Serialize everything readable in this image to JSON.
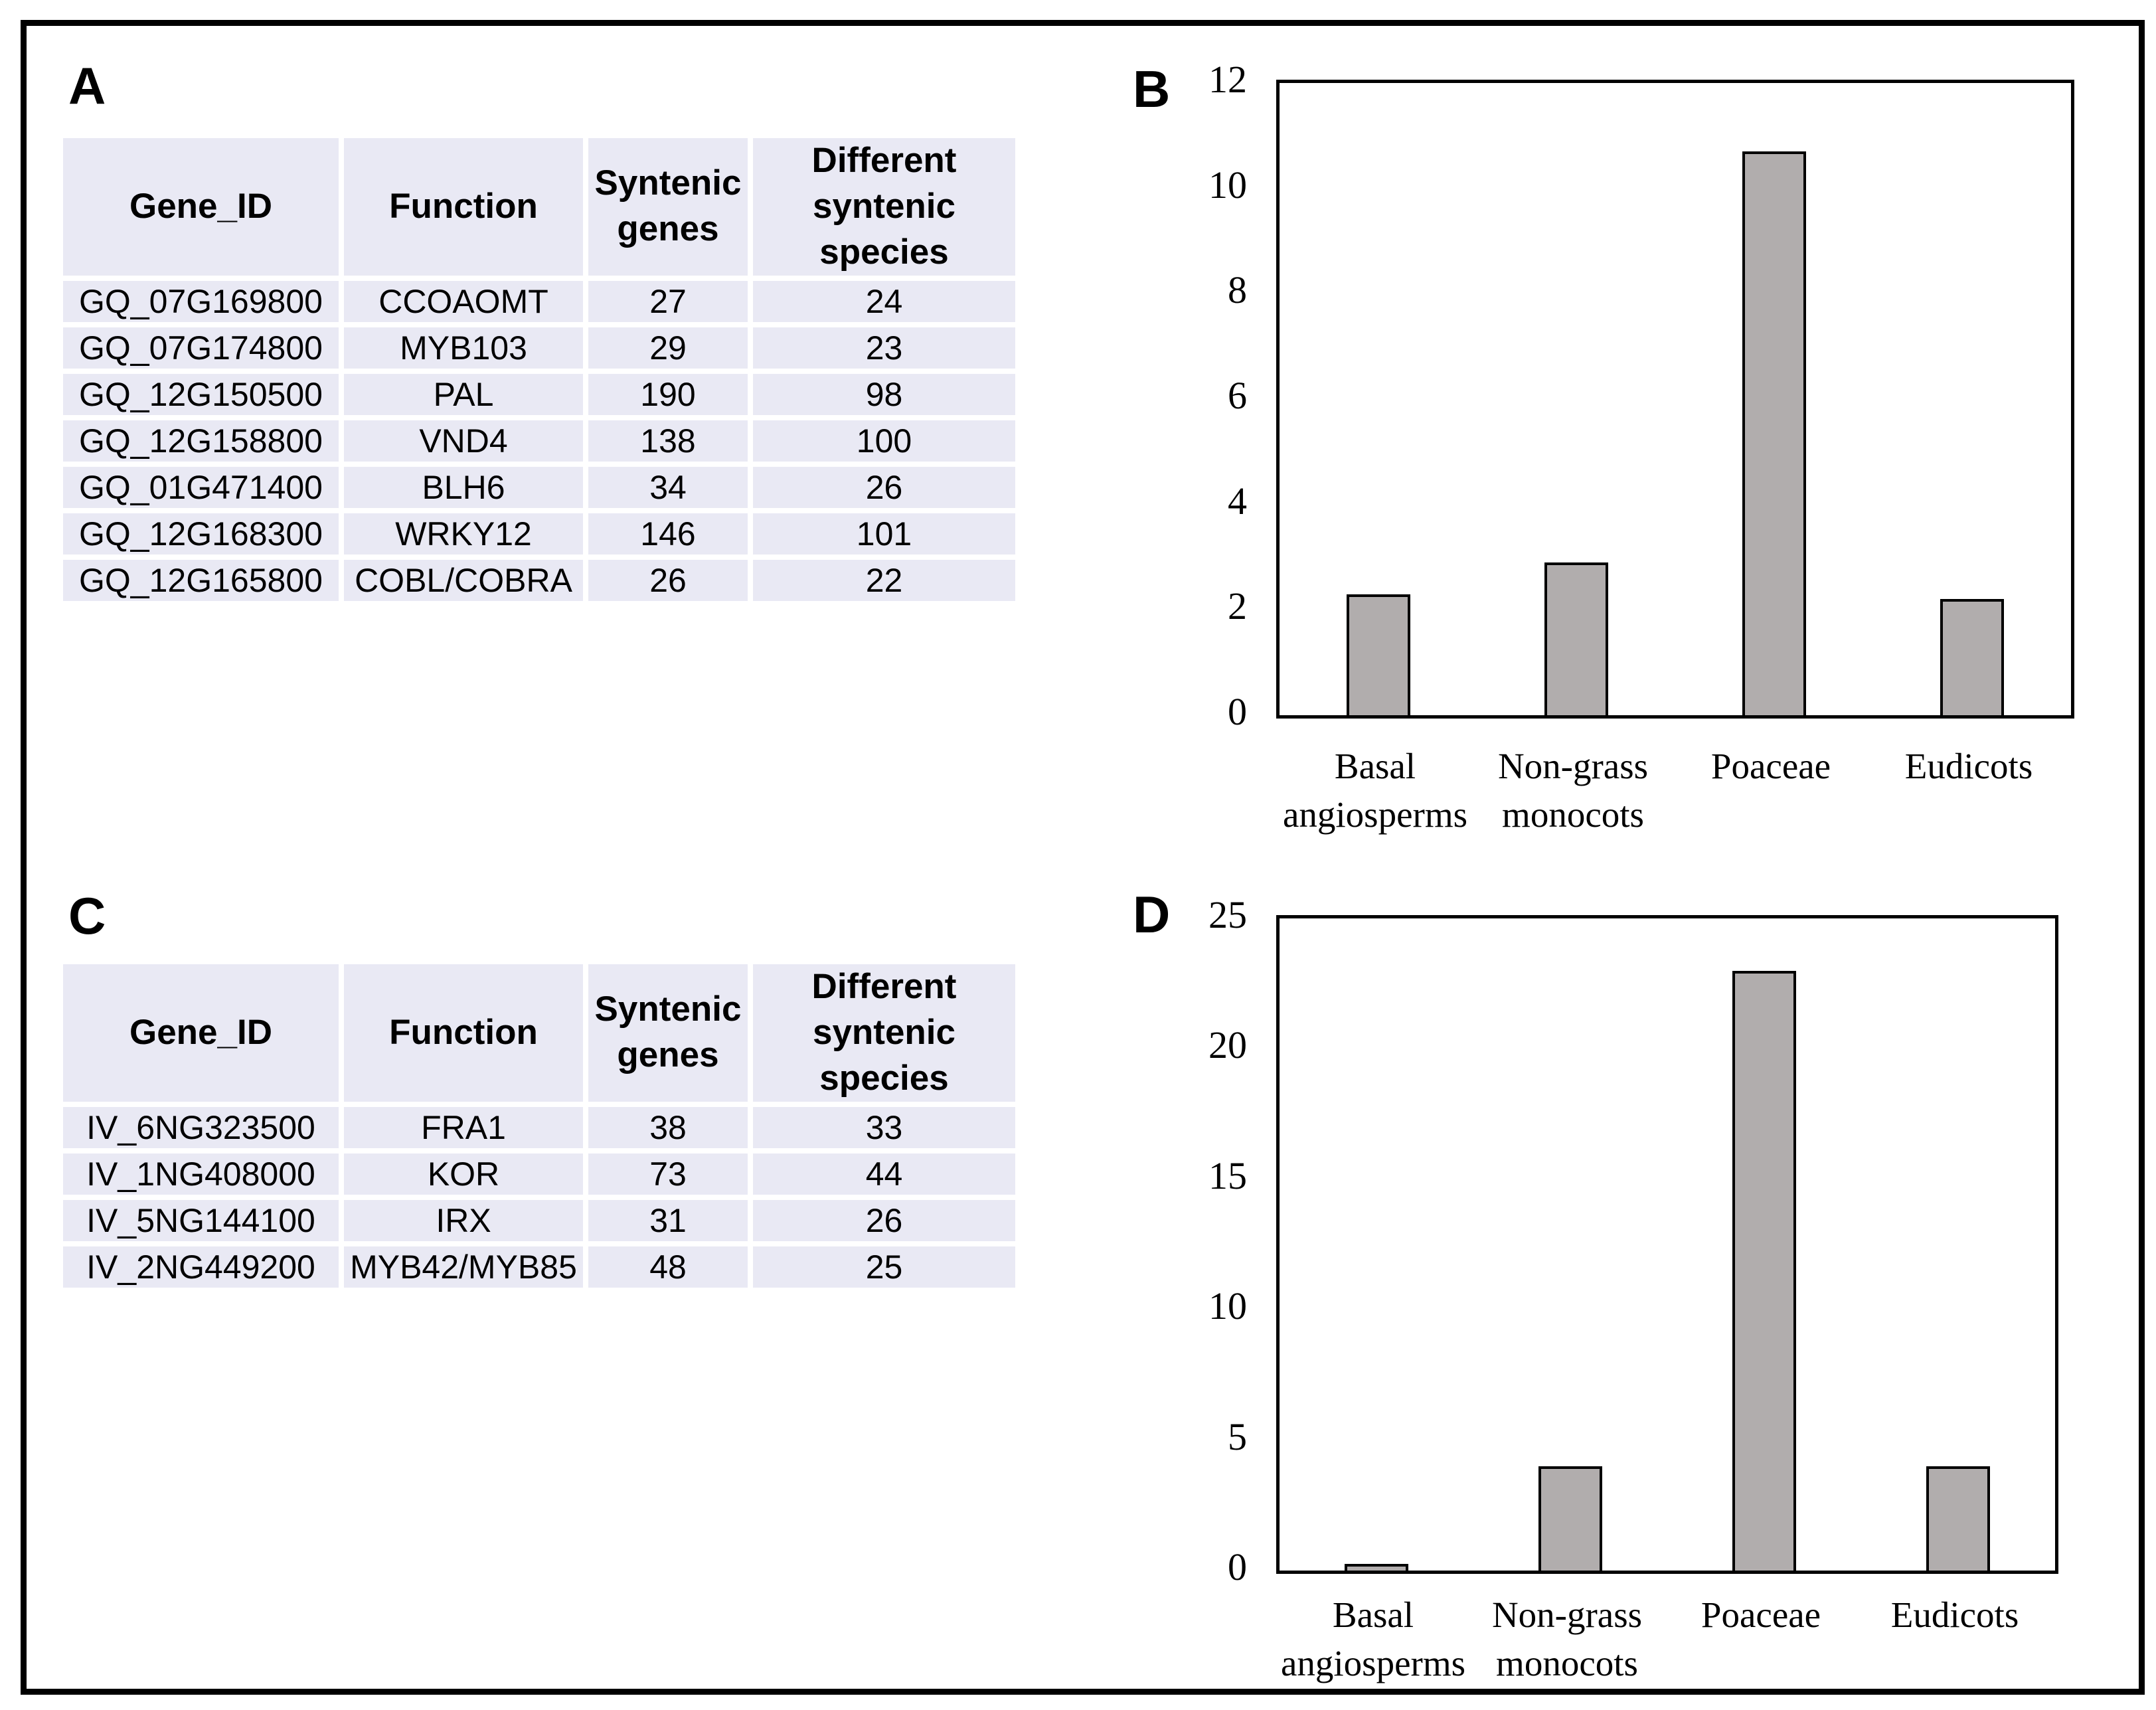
{
  "colors": {
    "background": "#ffffff",
    "frame": "#000000",
    "table_cell_bg": "#e9e9f4",
    "bar_fill": "#b1adad",
    "bar_border": "#000000",
    "text": "#000000"
  },
  "panels": {
    "a": {
      "label": "A"
    },
    "b": {
      "label": "B"
    },
    "c": {
      "label": "C"
    },
    "d": {
      "label": "D"
    }
  },
  "chart_data": [
    {
      "panel": "A",
      "type": "table",
      "columns": [
        "Gene_ID",
        "Function",
        "Syntenic\ngenes",
        "Different\nsyntenic species"
      ],
      "rows": [
        [
          "GQ_07G169800",
          "CCOAOMT",
          "27",
          "24"
        ],
        [
          "GQ_07G174800",
          "MYB103",
          "29",
          "23"
        ],
        [
          "GQ_12G150500",
          "PAL",
          "190",
          "98"
        ],
        [
          "GQ_12G158800",
          "VND4",
          "138",
          "100"
        ],
        [
          "GQ_01G471400",
          "BLH6",
          "34",
          "26"
        ],
        [
          "GQ_12G168300",
          "WRKY12",
          "146",
          "101"
        ],
        [
          "GQ_12G165800",
          "COBL/COBRA",
          "26",
          "22"
        ]
      ]
    },
    {
      "panel": "B",
      "type": "bar",
      "title": "",
      "xlabel": "",
      "ylabel": "",
      "categories": [
        "Basal\nangiosperms",
        "Non-grass\nmonocots",
        "Poaceae",
        "Eudicots"
      ],
      "values": [
        2.3,
        2.9,
        10.7,
        2.2
      ],
      "ylim": [
        0,
        12
      ],
      "yticks": [
        0,
        2,
        4,
        6,
        8,
        10,
        12
      ],
      "grid": false,
      "legend": false,
      "bar_fill": "#b1adad",
      "bar_border": "#000000"
    },
    {
      "panel": "C",
      "type": "table",
      "columns": [
        "Gene_ID",
        "Function",
        "Syntenic\ngenes",
        "Different\nsyntenic species"
      ],
      "rows": [
        [
          "IV_6NG323500",
          "FRA1",
          "38",
          "33"
        ],
        [
          "IV_1NG408000",
          "KOR",
          "73",
          "44"
        ],
        [
          "IV_5NG144100",
          "IRX",
          "31",
          "26"
        ],
        [
          "IV_2NG449200",
          "MYB42/MYB85",
          "48",
          "25"
        ]
      ]
    },
    {
      "panel": "D",
      "type": "bar",
      "title": "",
      "xlabel": "",
      "ylabel": "",
      "categories": [
        "Basal\nangiosperms",
        "Non-grass\nmonocots",
        "Poaceae",
        "Eudicots"
      ],
      "values": [
        0.25,
        4,
        23,
        4
      ],
      "ylim": [
        0,
        25
      ],
      "yticks": [
        0,
        5,
        10,
        15,
        20,
        25
      ],
      "grid": false,
      "legend": false,
      "bar_fill": "#b1adad",
      "bar_border": "#000000"
    }
  ]
}
